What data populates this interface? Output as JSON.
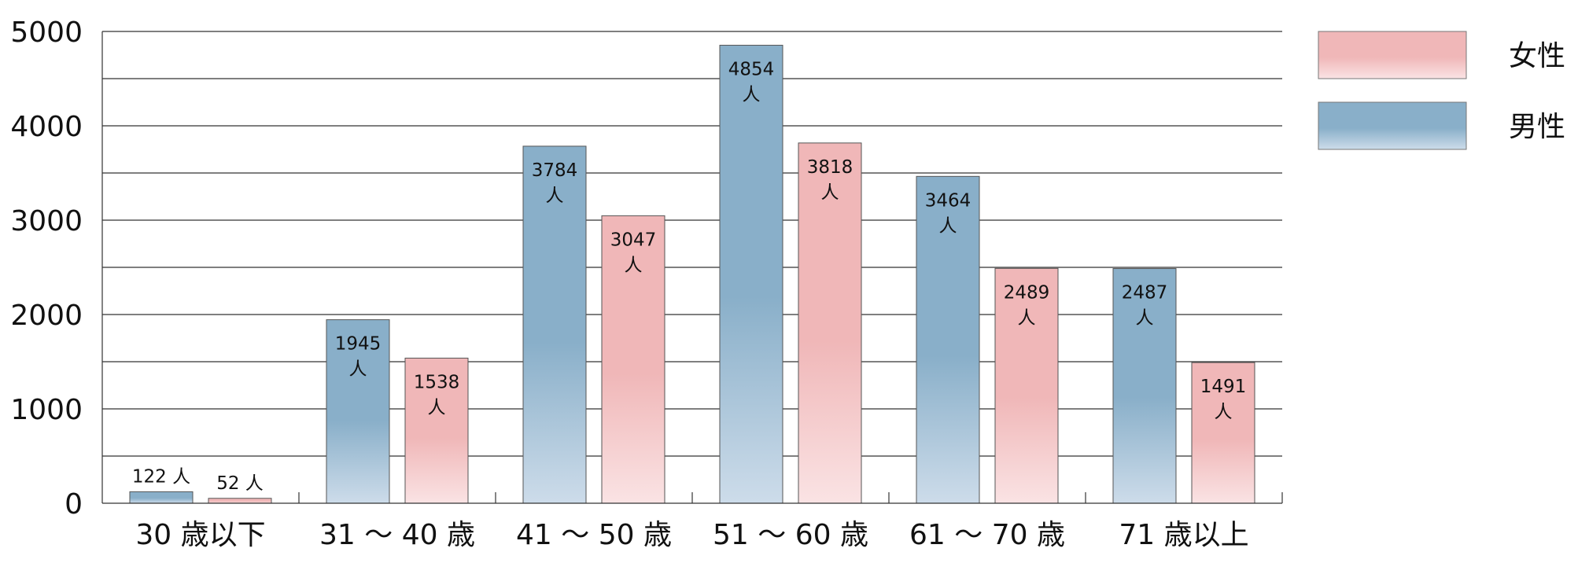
{
  "chart_data": {
    "type": "bar",
    "title": "",
    "xlabel": "",
    "ylabel": "",
    "ylim": [
      0,
      5000
    ],
    "yticks": [
      0,
      1000,
      2000,
      3000,
      4000,
      5000
    ],
    "grid": true,
    "legend_position": "top-right",
    "categories": [
      "30 歳以下",
      "31 ～ 40 歳",
      "41 ～ 50 歳",
      "51 ～ 60 歳",
      "61 ～ 70 歳",
      "71 歳以上"
    ],
    "series": [
      {
        "name": "男性",
        "color_top": "#89afc9",
        "color_bottom": "#cddcea",
        "values": [
          122,
          1945,
          3784,
          4854,
          3464,
          2487
        ],
        "labels": [
          "122 人",
          "1945\n人",
          "3784\n人",
          "4854\n人",
          "3464\n人",
          "2487\n人"
        ]
      },
      {
        "name": "女性",
        "color_top": "#f0b7b8",
        "color_bottom": "#fae3e4",
        "values": [
          52,
          1538,
          3047,
          3818,
          2489,
          1491
        ],
        "labels": [
          "52 人",
          "1538\n人",
          "3047\n人",
          "3818\n人",
          "2489\n人",
          "1491\n人"
        ]
      }
    ],
    "legend": [
      {
        "name": "女性",
        "color_top": "#f0b7b8",
        "color_bottom": "#fae3e4"
      },
      {
        "name": "男性",
        "color_top": "#89afc9",
        "color_bottom": "#cddcea"
      }
    ]
  }
}
